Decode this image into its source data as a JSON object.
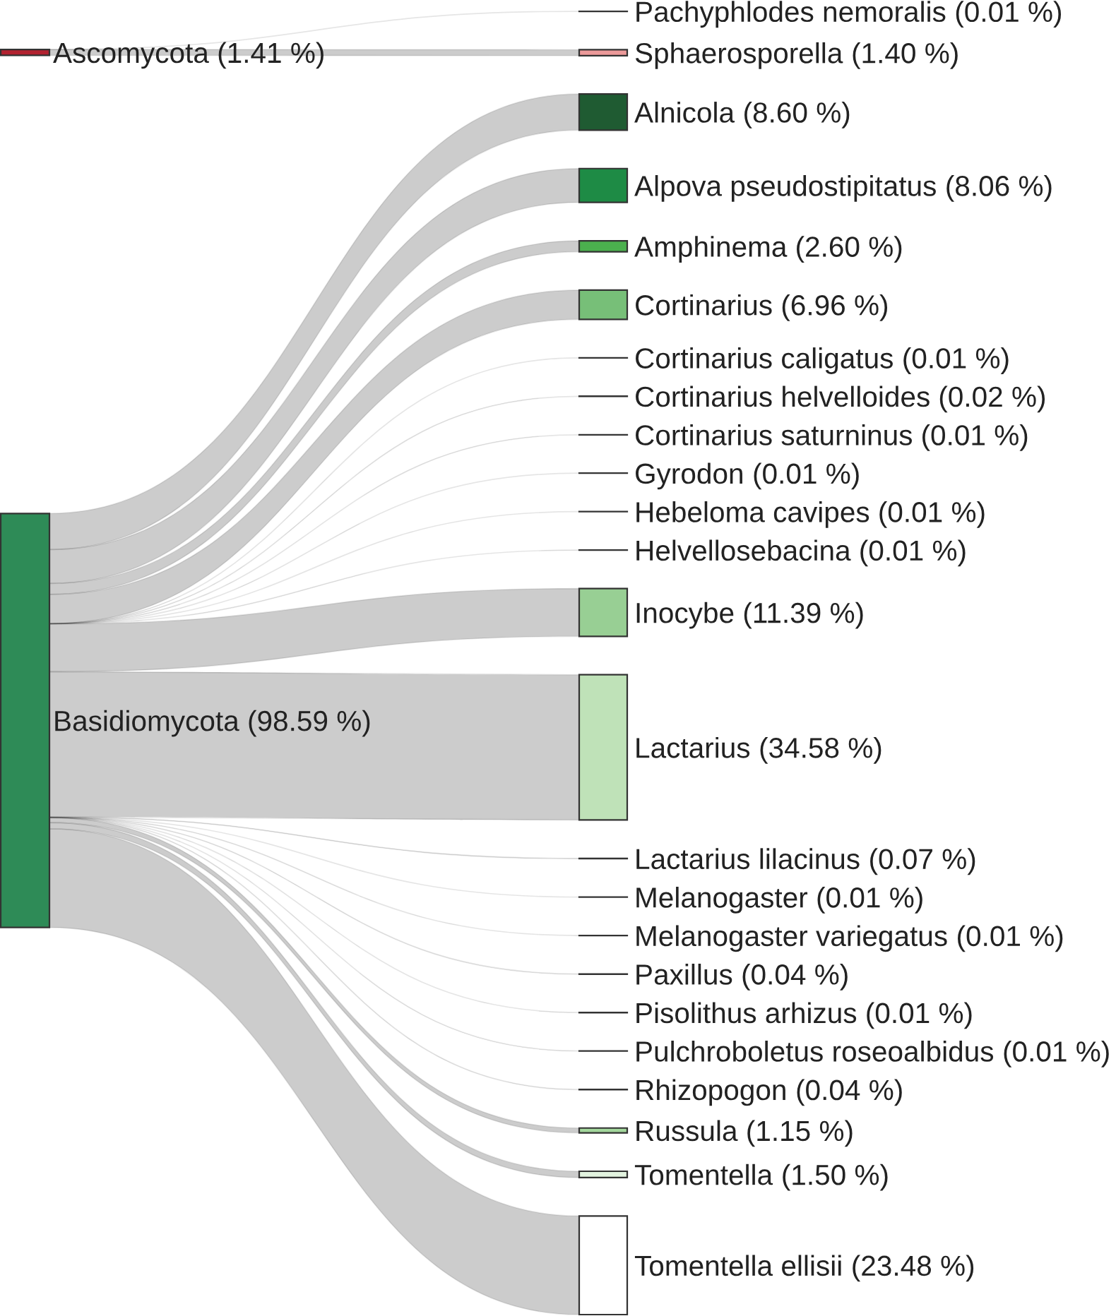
{
  "chart_data": {
    "type": "other",
    "categories": [
      "Pachyphlodes nemoralis",
      "Sphaerosporella",
      "Alnicola",
      "Alpova pseudostipitatus",
      "Amphinema",
      "Cortinarius",
      "Cortinarius caligatus",
      "Cortinarius helvelloides",
      "Cortinarius saturninus",
      "Gyrodon",
      "Hebeloma cavipes",
      "Helvellosebacina",
      "Inocybe",
      "Lactarius",
      "Lactarius lilacinus",
      "Melanogaster",
      "Melanogaster variegatus",
      "Paxillus",
      "Pisolithus arhizus",
      "Pulchroboletus roseoalbidus",
      "Rhizopogon",
      "Russula",
      "Tomentella",
      "Tomentella ellisii"
    ],
    "colors": [
      "#333333",
      "#ec9a9a",
      "#1f5b32",
      "#1e8b45",
      "#4bb04e",
      "#77bf78",
      "#333333",
      "#333333",
      "#333333",
      "#333333",
      "#333333",
      "#333333",
      "#98cf94",
      "#bfe2b8",
      "#333333",
      "#333333",
      "#333333",
      "#333333",
      "#333333",
      "#333333",
      "#333333",
      "#a3d79c",
      "#e2f3df",
      "#ffffff"
    ],
    "series": [
      {
        "name": "Ascomycota (1.41 %)",
        "values": [
          0.01,
          1.4,
          null,
          null,
          null,
          null,
          null,
          null,
          null,
          null,
          null,
          null,
          null,
          null,
          null,
          null,
          null,
          null,
          null,
          null,
          null,
          null,
          null,
          null
        ],
        "value_labels": [
          "(0.01 %)",
          "(1.40 %)",
          null,
          null,
          null,
          null,
          null,
          null,
          null,
          null,
          null,
          null,
          null,
          null,
          null,
          null,
          null,
          null,
          null,
          null,
          null,
          null,
          null,
          null
        ]
      },
      {
        "name": "Basidiomycota (98.59 %)",
        "values": [
          null,
          null,
          8.6,
          8.06,
          2.6,
          6.96,
          0.01,
          0.02,
          0.01,
          0.01,
          0.01,
          0.01,
          11.39,
          34.58,
          0.07,
          0.01,
          0.01,
          0.04,
          0.01,
          0.01,
          0.04,
          1.15,
          1.5,
          23.48
        ],
        "value_labels": [
          null,
          null,
          "(8.60 %)",
          "(8.06 %)",
          "(2.60 %)",
          "(6.96 %)",
          "(0.01 %)",
          "(0.02 %)",
          "(0.01 %)",
          "(0.01 %)",
          "(0.01 %)",
          "(0.01 %)",
          "(11.39 %)",
          "(34.58 %)",
          "(0.07 %)",
          "(0.01 %)",
          "(0.01 %)",
          "(0.04 %)",
          "(0.01 %)",
          "(0.01 %)",
          "(0.04 %)",
          "(1.15 %)",
          "(1.50 %)",
          "(23.48 %)"
        ]
      }
    ]
  }
}
